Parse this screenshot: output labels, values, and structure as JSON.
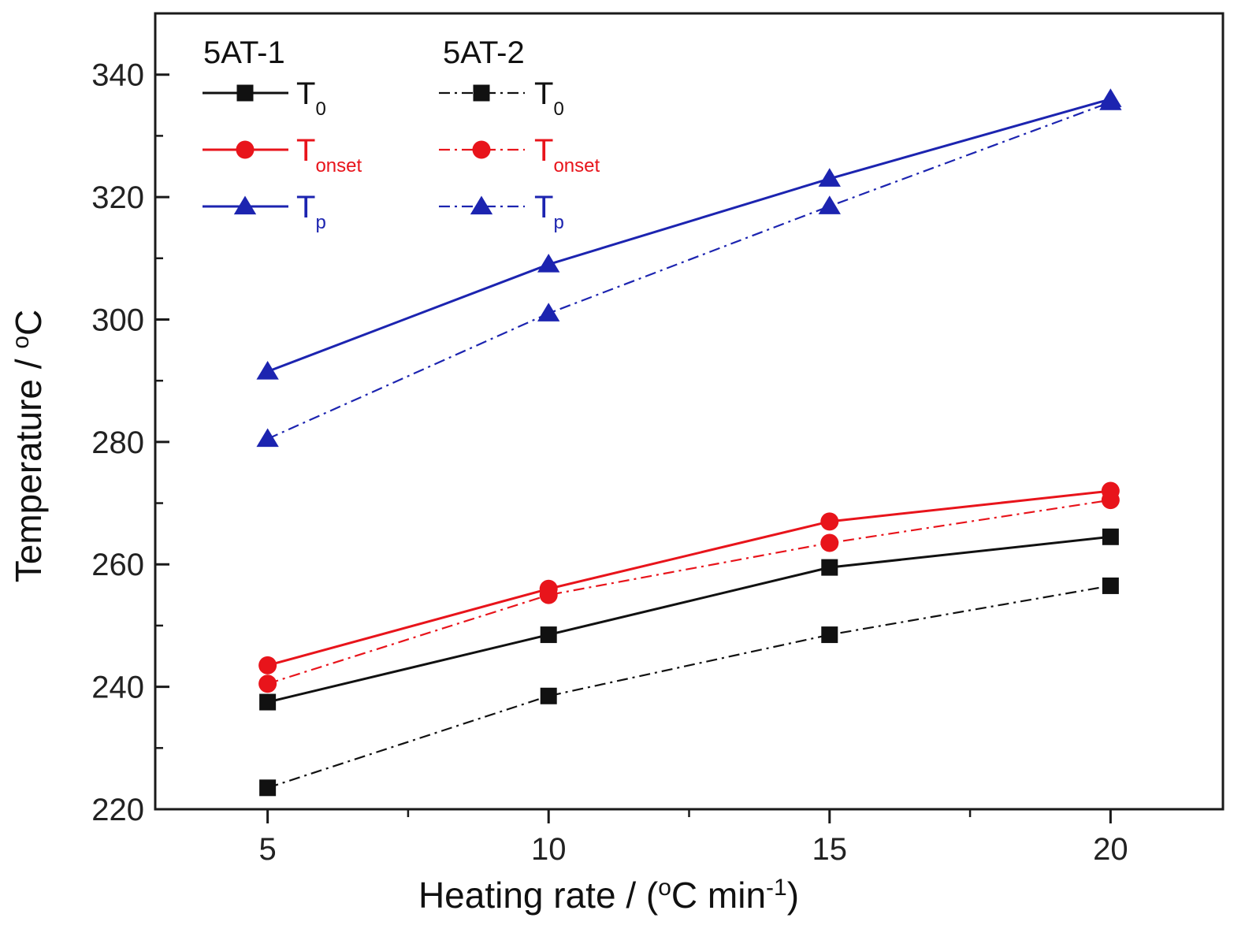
{
  "chart_data": {
    "type": "line",
    "title": "",
    "xlabel_parts": {
      "prefix": "Heating rate / (",
      "sup1": "o",
      "mid": "C min",
      "sup2": "-1",
      "suffix": ")"
    },
    "ylabel_parts": {
      "prefix": "Temperature / ",
      "sup": "o",
      "suffix": "C"
    },
    "x": [
      5,
      10,
      15,
      20
    ],
    "xlim": [
      3,
      22
    ],
    "ylim": [
      220,
      350
    ],
    "xticks": [
      5,
      10,
      15,
      20
    ],
    "xtick_labels": [
      "5",
      "10",
      "15",
      "20"
    ],
    "xticks_minor": [
      7.5,
      12.5,
      17.5
    ],
    "yticks": [
      220,
      240,
      260,
      280,
      300,
      320,
      340
    ],
    "ytick_labels": [
      "220",
      "240",
      "260",
      "280",
      "300",
      "320",
      "340"
    ],
    "yticks_minor": [
      230,
      250,
      270,
      290,
      310,
      330
    ],
    "grid": false,
    "legend_position": "top-left",
    "legend_groups": [
      "5AT-1",
      "5AT-2"
    ],
    "series": [
      {
        "name": "5AT-1 T0",
        "group": "5AT-1",
        "label_main": "T",
        "label_sub": "0",
        "color": "#111111",
        "linestyle": "solid",
        "marker": "square",
        "values": [
          237.5,
          248.5,
          259.5,
          264.5
        ]
      },
      {
        "name": "5AT-1 Tonset",
        "group": "5AT-1",
        "label_main": "T",
        "label_sub": "onset",
        "color": "#e8141b",
        "linestyle": "solid",
        "marker": "circle",
        "values": [
          243.5,
          256.0,
          267.0,
          272.0
        ]
      },
      {
        "name": "5AT-1 Tp",
        "group": "5AT-1",
        "label_main": "T",
        "label_sub": "p",
        "color": "#1c24b0",
        "linestyle": "solid",
        "marker": "triangle",
        "values": [
          291.5,
          309.0,
          323.0,
          336.0
        ]
      },
      {
        "name": "5AT-2 T0",
        "group": "5AT-2",
        "label_main": "T",
        "label_sub": "0",
        "color": "#111111",
        "linestyle": "dashdot",
        "marker": "square",
        "values": [
          223.5,
          238.5,
          248.5,
          256.5
        ]
      },
      {
        "name": "5AT-2 Tonset",
        "group": "5AT-2",
        "label_main": "T",
        "label_sub": "onset",
        "color": "#e8141b",
        "linestyle": "dashdot",
        "marker": "circle",
        "values": [
          240.5,
          255.0,
          263.5,
          270.5
        ]
      },
      {
        "name": "5AT-2 Tp",
        "group": "5AT-2",
        "label_main": "T",
        "label_sub": "p",
        "color": "#1c24b0",
        "linestyle": "dashdot",
        "marker": "triangle",
        "values": [
          280.5,
          301.0,
          318.5,
          335.5
        ]
      }
    ]
  }
}
